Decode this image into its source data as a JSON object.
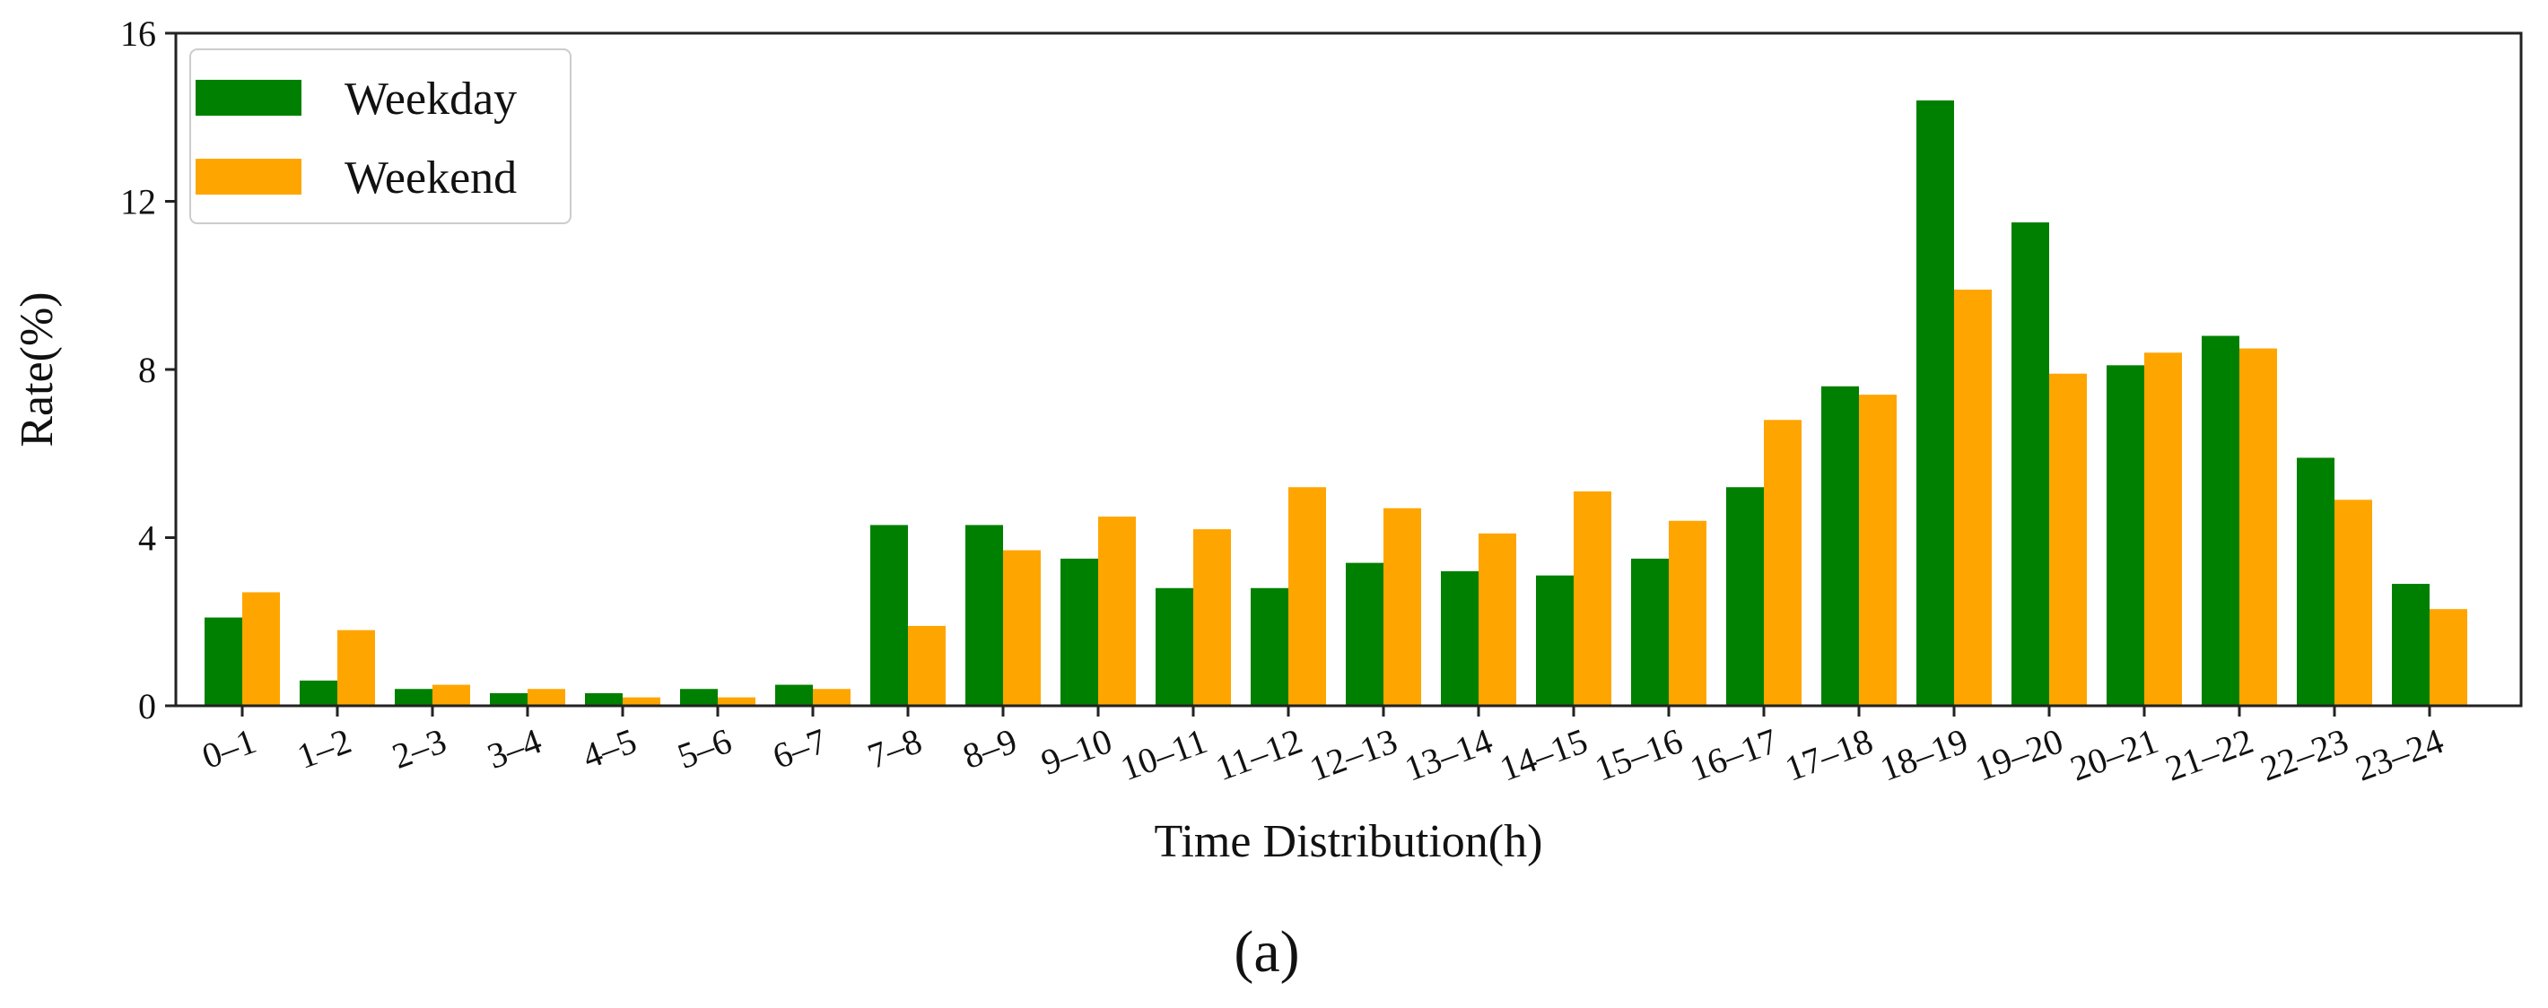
{
  "chart_data": {
    "type": "bar",
    "title": "",
    "xlabel": "Time Distribution(h)",
    "ylabel": "Rate(%)",
    "ylim": [
      0,
      16
    ],
    "yticks": [
      "0",
      "4",
      "8",
      "12",
      "16"
    ],
    "categories": [
      "0–1",
      "1–2",
      "2–3",
      "3–4",
      "4–5",
      "5–6",
      "6–7",
      "7–8",
      "8–9",
      "9–10",
      "10–11",
      "11–12",
      "12–13",
      "13–14",
      "14–15",
      "15–16",
      "16–17",
      "17–18",
      "18–19",
      "19–20",
      "20–21",
      "21–22",
      "22–23",
      "23–24"
    ],
    "series": [
      {
        "name": "Weekday",
        "color": "#008000",
        "values": [
          2.1,
          0.6,
          0.4,
          0.3,
          0.3,
          0.4,
          0.5,
          4.3,
          4.3,
          3.5,
          2.8,
          2.8,
          3.4,
          3.2,
          3.1,
          3.5,
          5.2,
          7.6,
          14.4,
          11.5,
          8.1,
          8.8,
          5.9,
          2.9
        ]
      },
      {
        "name": "Weekend",
        "color": "#FFA500",
        "values": [
          2.7,
          1.8,
          0.5,
          0.4,
          0.2,
          0.2,
          0.4,
          1.9,
          3.7,
          4.5,
          4.2,
          5.2,
          4.7,
          4.1,
          5.1,
          4.4,
          6.8,
          7.4,
          9.9,
          7.9,
          8.4,
          8.5,
          4.9,
          2.3
        ]
      }
    ],
    "legend_position": "top-left",
    "grid": false
  },
  "caption": "(a)"
}
